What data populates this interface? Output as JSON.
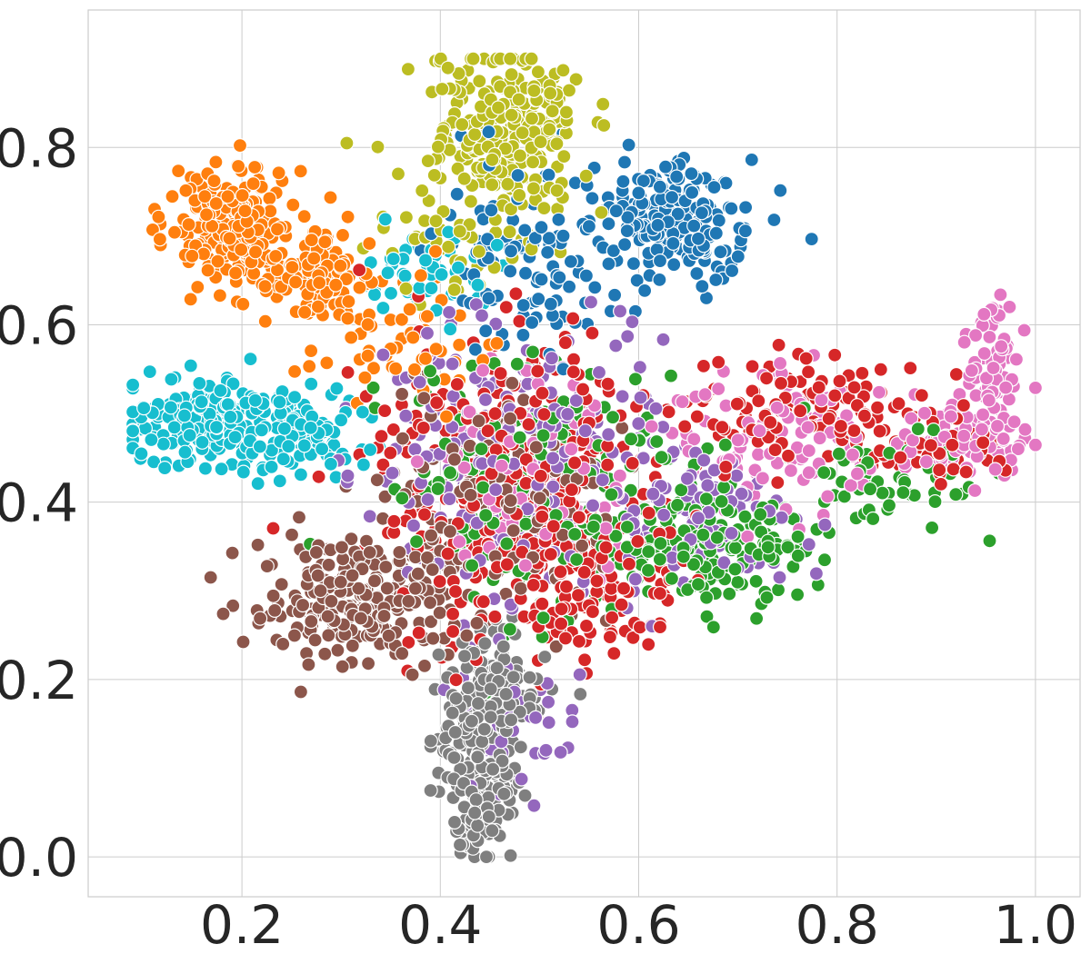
{
  "chart_data": {
    "type": "scatter",
    "title": "",
    "xlabel": "",
    "ylabel": "",
    "xlim": [
      0.045,
      1.045
    ],
    "ylim": [
      -0.045,
      0.955
    ],
    "xticks": [
      0.2,
      0.4,
      0.6,
      0.8,
      1.0
    ],
    "yticks": [
      0.0,
      0.2,
      0.4,
      0.6,
      0.8
    ],
    "xtick_labels": [
      "0.2",
      "0.4",
      "0.6",
      "0.8",
      "1.0"
    ],
    "ytick_labels": [
      "0.0",
      "0.2",
      "0.4",
      "0.6",
      "0.8"
    ],
    "grid": true,
    "legend": "none",
    "point_seed": 7,
    "series": [
      {
        "color": "#ff7f0e",
        "clusters": [
          {
            "cx": 0.19,
            "cy": 0.71,
            "sx": 0.03,
            "sy": 0.03,
            "n": 200
          },
          {
            "cx": 0.27,
            "cy": 0.66,
            "sx": 0.035,
            "sy": 0.025,
            "n": 120
          },
          {
            "cx": 0.36,
            "cy": 0.58,
            "sx": 0.05,
            "sy": 0.05,
            "n": 60
          }
        ]
      },
      {
        "color": "#17becf",
        "clusters": [
          {
            "cx": 0.17,
            "cy": 0.49,
            "sx": 0.045,
            "sy": 0.022,
            "n": 220
          },
          {
            "cx": 0.26,
            "cy": 0.48,
            "sx": 0.035,
            "sy": 0.025,
            "n": 90
          },
          {
            "cx": 0.38,
            "cy": 0.66,
            "sx": 0.04,
            "sy": 0.03,
            "n": 50
          }
        ]
      },
      {
        "color": "#bcbd22",
        "clusters": [
          {
            "cx": 0.47,
            "cy": 0.83,
            "sx": 0.035,
            "sy": 0.04,
            "n": 230
          },
          {
            "cx": 0.43,
            "cy": 0.72,
            "sx": 0.05,
            "sy": 0.05,
            "n": 80
          }
        ]
      },
      {
        "color": "#1f77b4",
        "clusters": [
          {
            "cx": 0.63,
            "cy": 0.72,
            "sx": 0.04,
            "sy": 0.035,
            "n": 200
          },
          {
            "cx": 0.5,
            "cy": 0.68,
            "sx": 0.05,
            "sy": 0.06,
            "n": 110
          }
        ]
      },
      {
        "color": "#d62728",
        "clusters": [
          {
            "cx": 0.47,
            "cy": 0.42,
            "sx": 0.07,
            "sy": 0.08,
            "n": 320
          },
          {
            "cx": 0.55,
            "cy": 0.29,
            "sx": 0.04,
            "sy": 0.04,
            "n": 100
          },
          {
            "cx": 0.76,
            "cy": 0.5,
            "sx": 0.07,
            "sy": 0.03,
            "n": 120
          },
          {
            "cx": 0.9,
            "cy": 0.46,
            "sx": 0.04,
            "sy": 0.02,
            "n": 50
          }
        ]
      },
      {
        "color": "#8c564b",
        "clusters": [
          {
            "cx": 0.32,
            "cy": 0.29,
            "sx": 0.05,
            "sy": 0.035,
            "n": 240
          },
          {
            "cx": 0.45,
            "cy": 0.4,
            "sx": 0.06,
            "sy": 0.06,
            "n": 140
          }
        ]
      },
      {
        "color": "#2ca02c",
        "clusters": [
          {
            "cx": 0.5,
            "cy": 0.42,
            "sx": 0.07,
            "sy": 0.07,
            "n": 200
          },
          {
            "cx": 0.68,
            "cy": 0.35,
            "sx": 0.05,
            "sy": 0.03,
            "n": 160
          },
          {
            "cx": 0.85,
            "cy": 0.43,
            "sx": 0.05,
            "sy": 0.03,
            "n": 60
          }
        ]
      },
      {
        "color": "#9467bd",
        "clusters": [
          {
            "cx": 0.48,
            "cy": 0.45,
            "sx": 0.07,
            "sy": 0.08,
            "n": 230
          },
          {
            "cx": 0.66,
            "cy": 0.38,
            "sx": 0.05,
            "sy": 0.04,
            "n": 90
          },
          {
            "cx": 0.47,
            "cy": 0.15,
            "sx": 0.03,
            "sy": 0.04,
            "n": 40
          }
        ]
      },
      {
        "color": "#e377c2",
        "clusters": [
          {
            "cx": 0.93,
            "cy": 0.47,
            "sx": 0.035,
            "sy": 0.02,
            "n": 90
          },
          {
            "cx": 0.96,
            "cy": 0.55,
            "sx": 0.015,
            "sy": 0.035,
            "n": 70
          },
          {
            "cx": 0.74,
            "cy": 0.48,
            "sx": 0.05,
            "sy": 0.04,
            "n": 100
          },
          {
            "cx": 0.5,
            "cy": 0.44,
            "sx": 0.06,
            "sy": 0.06,
            "n": 80
          }
        ]
      },
      {
        "color": "#7f7f7f",
        "clusters": [
          {
            "cx": 0.44,
            "cy": 0.13,
            "sx": 0.02,
            "sy": 0.05,
            "n": 200
          },
          {
            "cx": 0.44,
            "cy": 0.04,
            "sx": 0.01,
            "sy": 0.02,
            "n": 50
          },
          {
            "cx": 0.46,
            "cy": 0.2,
            "sx": 0.03,
            "sy": 0.03,
            "n": 60
          }
        ]
      }
    ]
  }
}
